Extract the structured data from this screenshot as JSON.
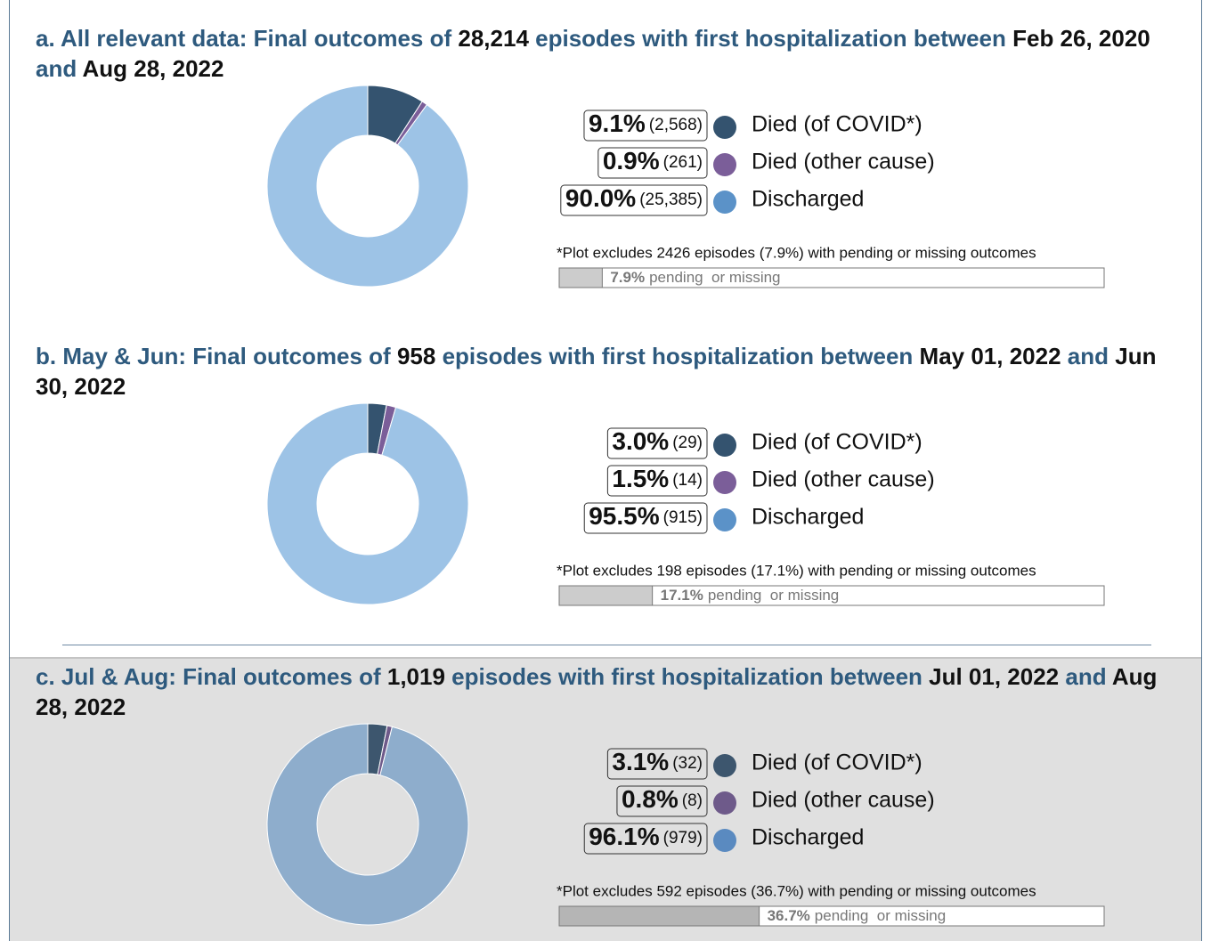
{
  "chart_data": [
    {
      "type": "pie",
      "title_parts": [
        "a. All relevant data: Final outcomes of",
        "28,214",
        "episodes with first hospitalization between",
        "Feb 26, 2020",
        "and",
        "Aug 28, 2022"
      ],
      "categories": [
        "Died (of COVID*)",
        "Died (other cause)",
        "Discharged"
      ],
      "values": [
        9.1,
        0.9,
        90.0
      ],
      "value_labels": [
        "9.1%",
        "0.9%",
        "90.0%"
      ],
      "counts": [
        2568,
        261,
        25385
      ],
      "count_labels": [
        "(2,568)",
        "(261)",
        "(25,385)"
      ],
      "colors": [
        "#34536f",
        "#7b5e99",
        "#9dc3e6"
      ],
      "legend_colors": [
        "#34536f",
        "#7b5e99",
        "#5b92c8"
      ],
      "note": "*Plot excludes 2426 episodes (7.9%) with pending or missing outcomes",
      "pending": 7.9,
      "pending_label": "7.9%",
      "pending_text": "pending  or missing",
      "xlim": [
        0,
        100
      ],
      "pending_color": "#cccccc",
      "background": "#ffffff"
    },
    {
      "type": "pie",
      "title_parts": [
        "b. May & Jun: Final outcomes of",
        "958",
        "episodes with first hospitalization between",
        "May 01, 2022",
        "and",
        "Jun 30, 2022"
      ],
      "categories": [
        "Died (of COVID*)",
        "Died (other cause)",
        "Discharged"
      ],
      "values": [
        3.0,
        1.5,
        95.5
      ],
      "value_labels": [
        "3.0%",
        "1.5%",
        "95.5%"
      ],
      "counts": [
        29,
        14,
        915
      ],
      "count_labels": [
        "(29)",
        "(14)",
        "(915)"
      ],
      "colors": [
        "#34536f",
        "#7b5e99",
        "#9dc3e6"
      ],
      "legend_colors": [
        "#34536f",
        "#7b5e99",
        "#5b92c8"
      ],
      "note": "*Plot excludes 198 episodes (17.1%) with pending or missing outcomes",
      "pending": 17.1,
      "pending_label": "17.1%",
      "pending_text": "pending  or missing",
      "xlim": [
        0,
        100
      ],
      "pending_color": "#cccccc",
      "background": "#ffffff"
    },
    {
      "type": "pie",
      "title_parts": [
        "c. Jul & Aug: Final outcomes of",
        "1,019",
        "episodes with first hospitalization between",
        "Jul 01, 2022",
        "and",
        "Aug 28, 2022"
      ],
      "categories": [
        "Died (of COVID*)",
        "Died (other cause)",
        "Discharged"
      ],
      "values": [
        3.1,
        0.8,
        96.1
      ],
      "value_labels": [
        "3.1%",
        "0.8%",
        "96.1%"
      ],
      "counts": [
        32,
        8,
        979
      ],
      "count_labels": [
        "(32)",
        "(8)",
        "(979)"
      ],
      "colors": [
        "#3d566e",
        "#6e5a8a",
        "#8eadcc"
      ],
      "legend_colors": [
        "#3d566e",
        "#6e5a8a",
        "#5a8ac0"
      ],
      "note": "*Plot excludes 592 episodes (36.7%) with pending or missing outcomes",
      "pending": 36.7,
      "pending_label": "36.7%",
      "pending_text": "pending  or missing",
      "xlim": [
        0,
        100
      ],
      "pending_color": "#b5b5b5",
      "background": "#e0e0e0"
    }
  ]
}
